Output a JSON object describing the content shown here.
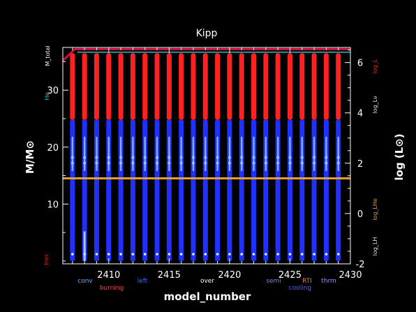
{
  "chart_data": {
    "type": "kippenhahn",
    "title": "Kipp",
    "xlabel": "model_number",
    "ylabel_left": "M/M⊙",
    "ylabel_right": "log (L⊙)",
    "xlim": [
      2406.2,
      2430
    ],
    "ylim_left": [
      -0.5,
      37.5
    ],
    "ylim_right": [
      -2,
      6.6
    ],
    "x_ticks": [
      2410,
      2415,
      2420,
      2425,
      2430
    ],
    "y_ticks_left": [
      10,
      20,
      30
    ],
    "y_ticks_right": [
      -2,
      0,
      2,
      4,
      6
    ],
    "models": [
      2407,
      2408,
      2409,
      2410,
      2411,
      2412,
      2413,
      2414,
      2415,
      2416,
      2417,
      2418,
      2419,
      2420,
      2421,
      2422,
      2423,
      2424,
      2425,
      2426,
      2427,
      2428,
      2429
    ],
    "burning_zone_mass": [
      24.8,
      36.5
    ],
    "convective_envelope_mass": [
      0,
      24.8
    ],
    "mixing_region_mass": [
      15.8,
      21.8
    ],
    "total_mass": 37.2,
    "he_core_mass": 36.3,
    "logL_He": 1.4,
    "colors": {
      "burning": "#ff2020",
      "convection": "#2030ff",
      "mixing": "#90c8ff",
      "mass_line": "#d01040",
      "he_line": "#20c0c0",
      "logLHe": "#e0a030",
      "axis": "#ffffff"
    },
    "right_labels": {
      "logL": "log_L",
      "logLnu": "log_Lν",
      "logLHe": "log_LHe",
      "logLH": "log_LH"
    },
    "left_labels": {
      "Mtotal": "M_total",
      "He": "He",
      "Iron": "Iron"
    },
    "legend": [
      {
        "label": "conv",
        "color": "#5fb0ff"
      },
      {
        "label": "burning",
        "color": "#ff4040"
      },
      {
        "label": "left",
        "color": "#3b6cff"
      },
      {
        "label": "over",
        "color": "#ffffff"
      },
      {
        "label": "semi",
        "color": "#7090c0"
      },
      {
        "label": "RTI",
        "color": "#ff7040"
      },
      {
        "label": "cooling",
        "color": "#5060ff"
      },
      {
        "label": "thrm",
        "color": "#b080ff"
      }
    ]
  }
}
